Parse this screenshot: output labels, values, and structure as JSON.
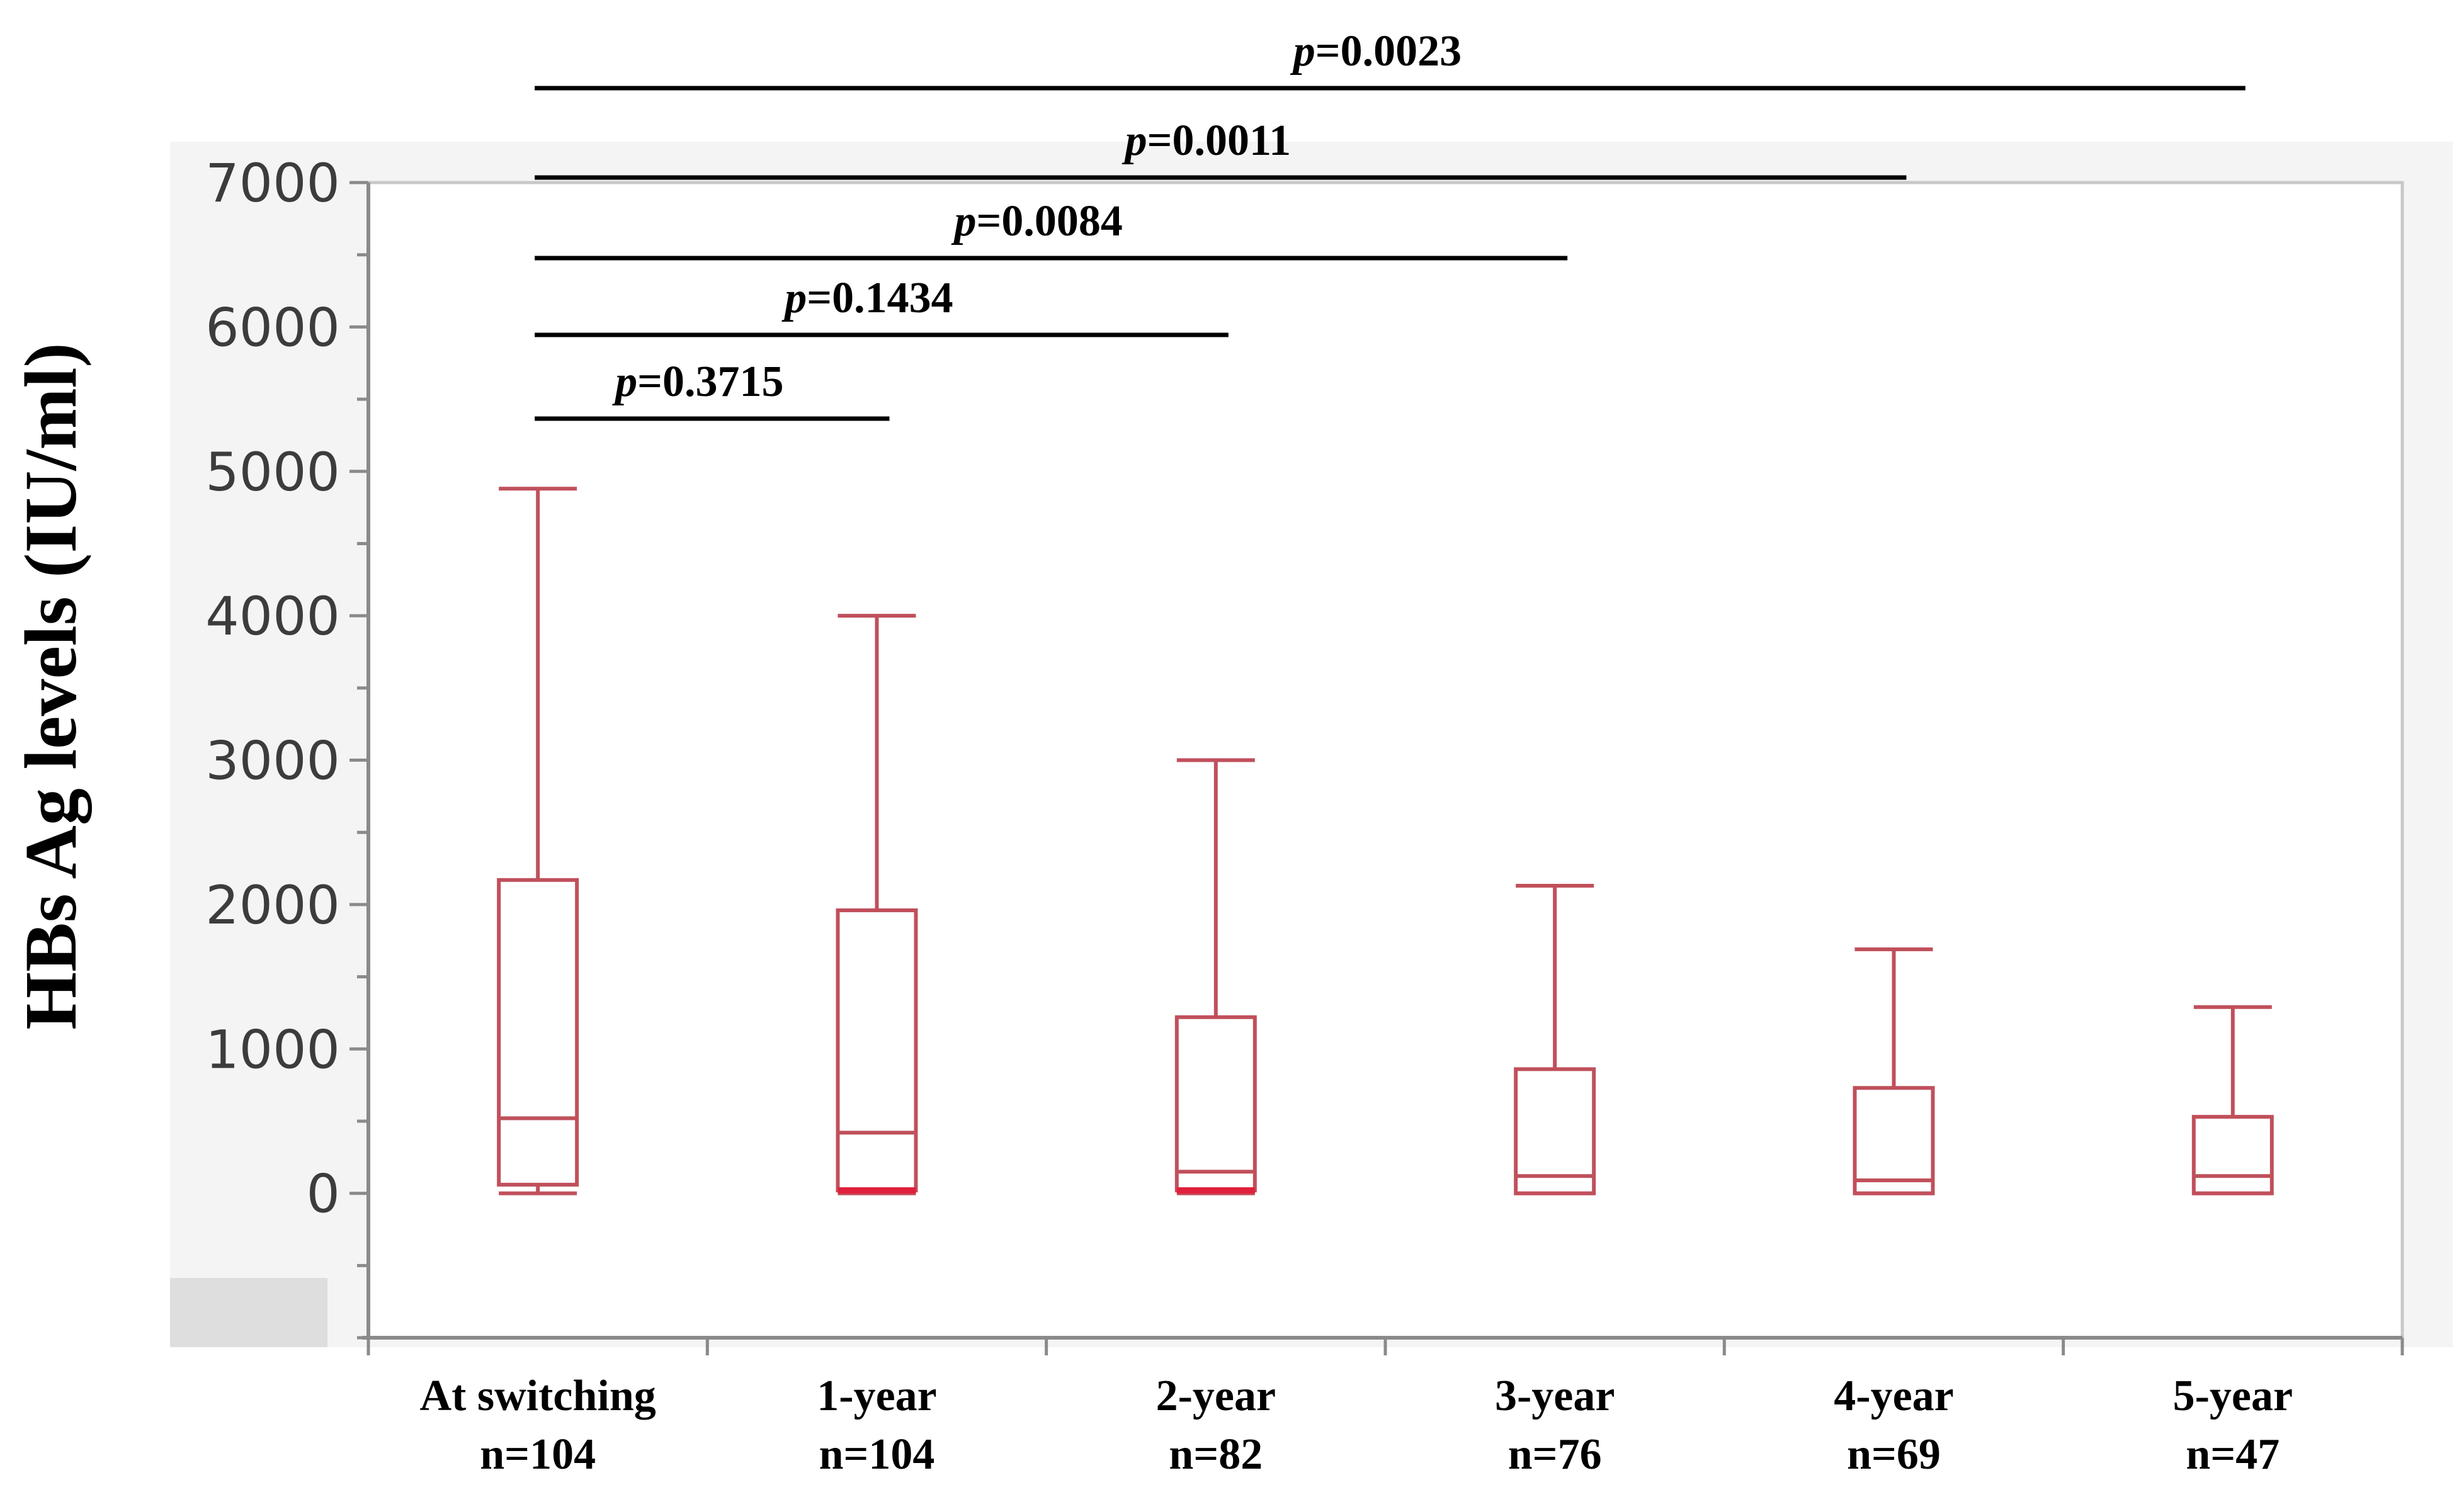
{
  "chart_data": {
    "type": "box",
    "ylabel": "HBs Ag levels (IU/ml)",
    "xlabel": "",
    "ylim": [
      -1000,
      7000
    ],
    "yticks": [
      0,
      1000,
      2000,
      3000,
      4000,
      5000,
      6000,
      7000
    ],
    "grid": false,
    "colors": {
      "box": "#c0505c",
      "box_strong": "#e0203c",
      "axis": "#8a8a8a",
      "plot_bg": "#f4f4f4",
      "bracket": "#000000"
    },
    "categories": [
      {
        "name": "At switching",
        "n": "n=104"
      },
      {
        "name": "1-year",
        "n": "n=104"
      },
      {
        "name": "2-year",
        "n": "n=82"
      },
      {
        "name": "3-year",
        "n": "n=76"
      },
      {
        "name": "4-year",
        "n": "n=69"
      },
      {
        "name": "5-year",
        "n": "n=47"
      }
    ],
    "boxes": [
      {
        "category": "At switching",
        "min": 0,
        "q1": 60,
        "median": 520,
        "q3": 2170,
        "max": 4880
      },
      {
        "category": "1-year",
        "min": 0,
        "q1": 20,
        "median": 420,
        "q3": 1960,
        "max": 4000
      },
      {
        "category": "2-year",
        "min": 0,
        "q1": 20,
        "median": 150,
        "q3": 1220,
        "max": 3000
      },
      {
        "category": "3-year",
        "min": 0,
        "q1": 0,
        "median": 120,
        "q3": 860,
        "max": 2130
      },
      {
        "category": "4-year",
        "min": 0,
        "q1": 0,
        "median": 90,
        "q3": 730,
        "max": 1690
      },
      {
        "category": "5-year",
        "min": 0,
        "q1": 0,
        "median": 120,
        "q3": 530,
        "max": 1290
      }
    ],
    "comparisons": [
      {
        "from": "At switching",
        "to": "1-year",
        "p_prefix": "p",
        "p_value": "=0.3715"
      },
      {
        "from": "At switching",
        "to": "2-year",
        "p_prefix": "p",
        "p_value": "=0.1434"
      },
      {
        "from": "At switching",
        "to": "3-year",
        "p_prefix": "p",
        "p_value": "=0.0084"
      },
      {
        "from": "At switching",
        "to": "4-year",
        "p_prefix": "p",
        "p_value": "=0.0011"
      },
      {
        "from": "At switching",
        "to": "5-year",
        "p_prefix": "p",
        "p_value": "=0.0023"
      }
    ]
  }
}
